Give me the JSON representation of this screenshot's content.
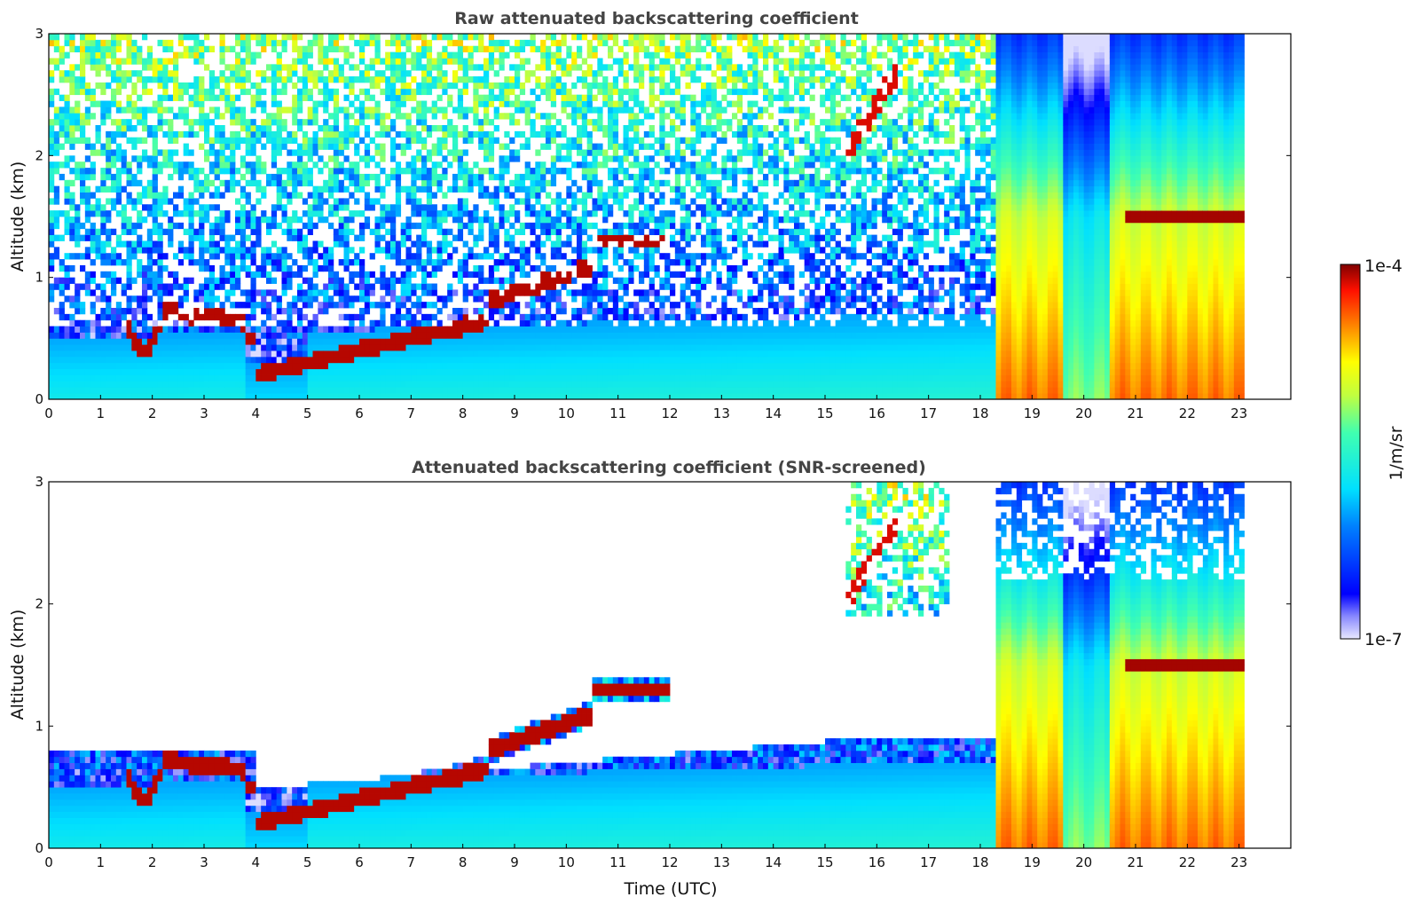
{
  "panels": [
    {
      "title": "Raw attenuated backscattering coefficient",
      "ylabel": "Altitude (km)",
      "xlabel": "",
      "variant": "raw"
    },
    {
      "title": "Attenuated backscattering coefficient (SNR-screened)",
      "ylabel": "Altitude (km)",
      "xlabel": "Time (UTC)",
      "variant": "screened"
    }
  ],
  "colorbar": {
    "max_label": "1e-4",
    "min_label": "1e-7",
    "unit_label": "1/m/sr",
    "colormap": "jet"
  },
  "chart_data": [
    {
      "type": "heatmap",
      "title": "Raw attenuated backscattering coefficient",
      "xlabel": "",
      "ylabel": "Altitude (km)",
      "xlim": [
        0,
        24
      ],
      "ylim": [
        0,
        3
      ],
      "xticks": [
        "0",
        "1",
        "2",
        "3",
        "4",
        "5",
        "6",
        "7",
        "8",
        "9",
        "10",
        "11",
        "12",
        "13",
        "14",
        "15",
        "16",
        "17",
        "18",
        "19",
        "20",
        "21",
        "22",
        "23"
      ],
      "yticks": [
        "0",
        "1",
        "2",
        "3"
      ],
      "color_scale": {
        "min": "1e-7",
        "max": "1e-4",
        "unit": "1/m/sr",
        "log": true
      },
      "data_extent_hours": [
        0,
        23.15
      ]
    },
    {
      "type": "heatmap",
      "title": "Attenuated backscattering coefficient (SNR-screened)",
      "xlabel": "Time (UTC)",
      "ylabel": "Altitude (km)",
      "xlim": [
        0,
        24
      ],
      "ylim": [
        0,
        3
      ],
      "xticks": [
        "0",
        "1",
        "2",
        "3",
        "4",
        "5",
        "6",
        "7",
        "8",
        "9",
        "10",
        "11",
        "12",
        "13",
        "14",
        "15",
        "16",
        "17",
        "18",
        "19",
        "20",
        "21",
        "22",
        "23"
      ],
      "yticks": [
        "0",
        "1",
        "2",
        "3"
      ],
      "color_scale": {
        "min": "1e-7",
        "max": "1e-4",
        "unit": "1/m/sr",
        "log": true
      },
      "data_extent_hours": [
        0,
        23.15
      ]
    }
  ]
}
